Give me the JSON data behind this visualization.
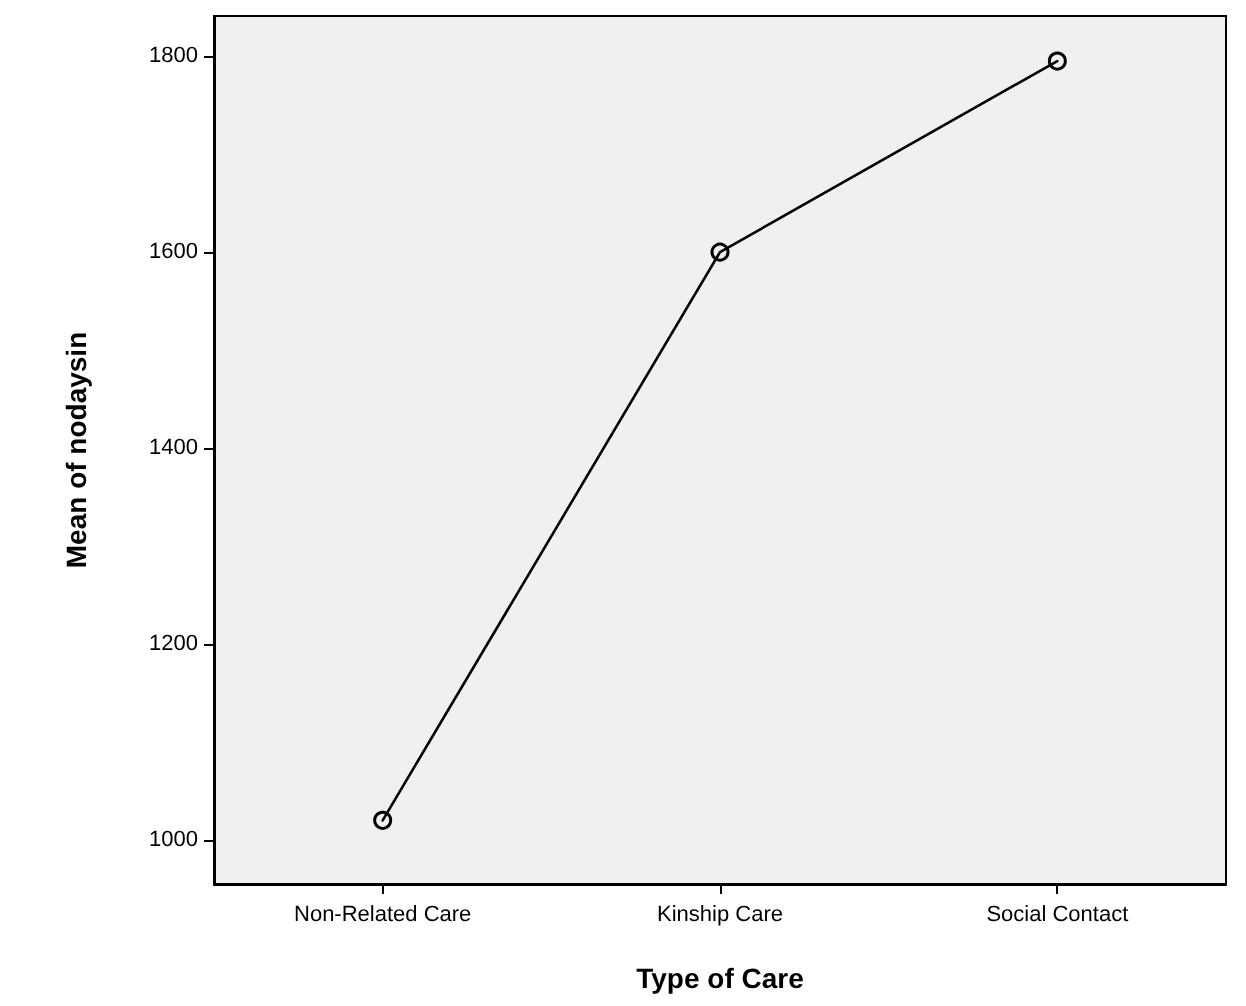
{
  "chart_data": {
    "type": "line",
    "xlabel": "Type of Care",
    "ylabel": "Mean of nodaysin",
    "categories": [
      "Non-Related Care",
      "Kinship Care",
      "Social Contact"
    ],
    "series": [
      {
        "color": "#000000",
        "values": [
          1020,
          1600,
          1795
        ]
      }
    ],
    "ylim": [
      955,
      1841
    ],
    "yticks": [
      1000,
      1200,
      1400,
      1600,
      1800
    ],
    "grid": false,
    "marker": "circle",
    "line_style": "solid"
  }
}
